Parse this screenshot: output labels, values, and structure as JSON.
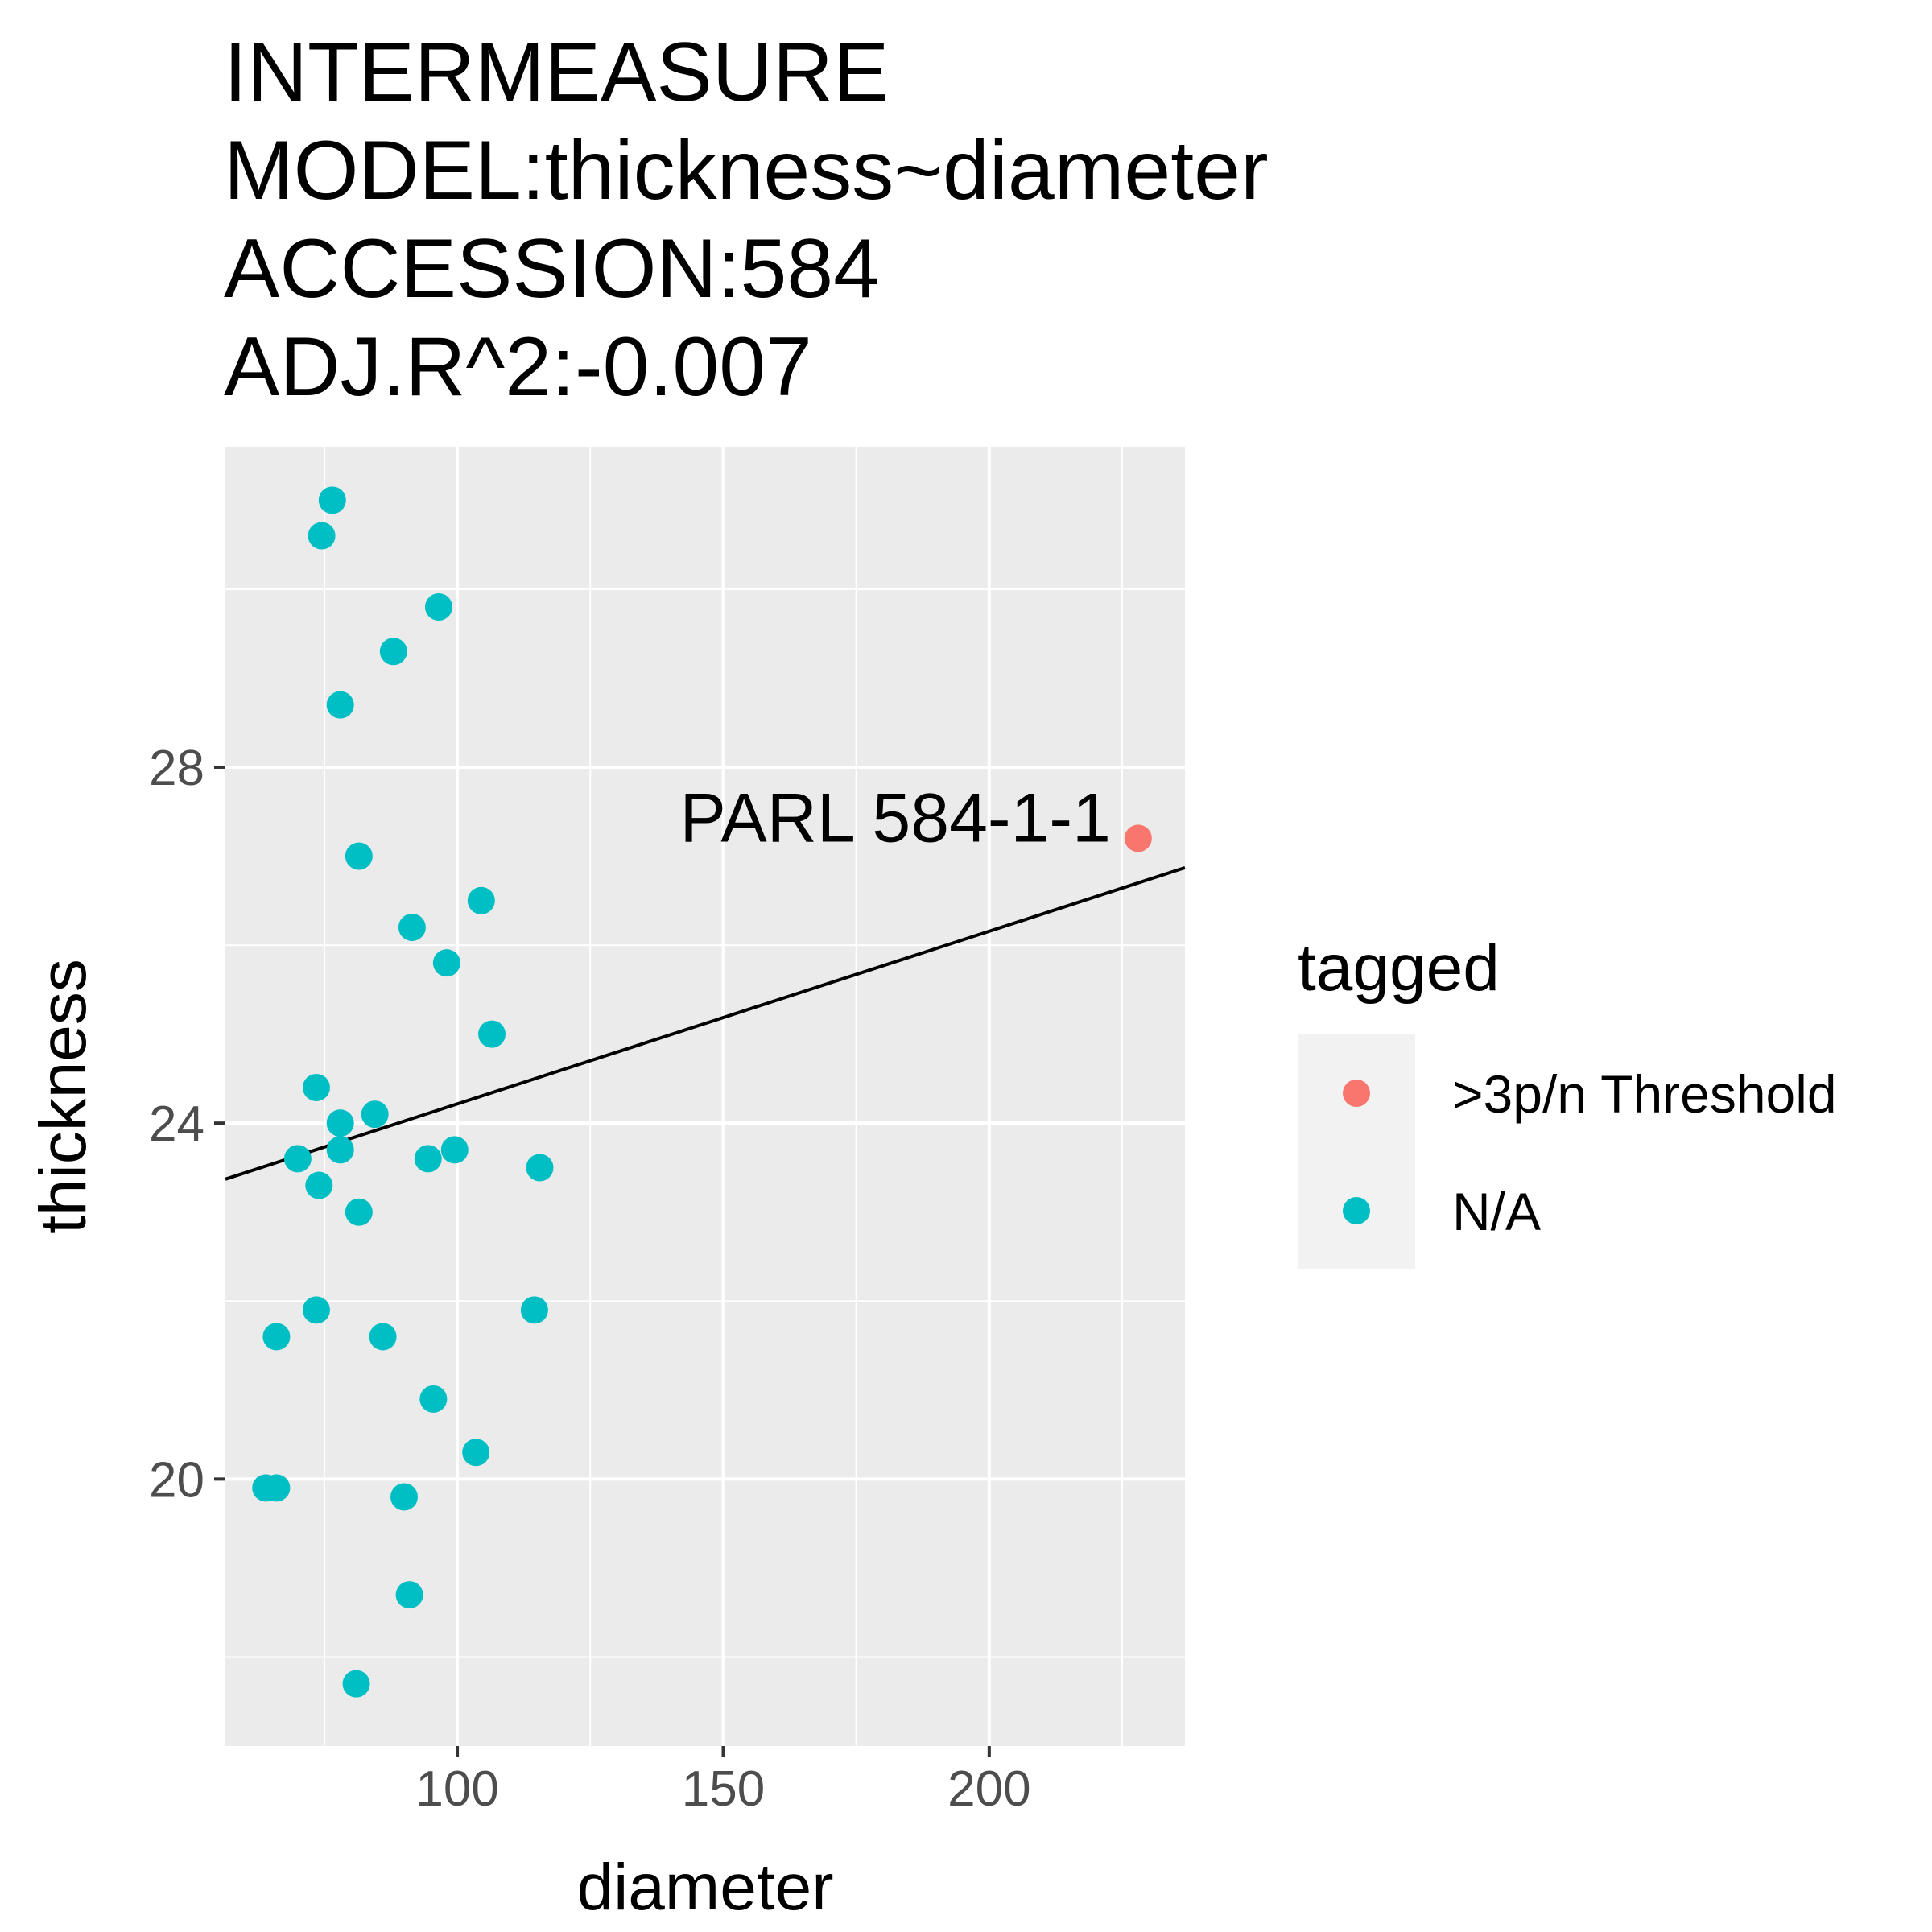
{
  "chart_data": {
    "type": "scatter",
    "title_lines": [
      "INTERMEASURE",
      "MODEL:thickness~diameter",
      "ACCESSION:584",
      "ADJ.R^2:-0.007"
    ],
    "xlabel": "diameter",
    "ylabel": "thickness",
    "xlim": [
      56.4,
      236.8
    ],
    "ylim": [
      17.0,
      31.6
    ],
    "x_ticks": [
      100,
      150,
      200
    ],
    "x_tick_labels": [
      "100",
      "150",
      "200"
    ],
    "y_ticks": [
      20,
      24,
      28
    ],
    "y_tick_labels": [
      "20",
      "24",
      "28"
    ],
    "grid": true,
    "legend": {
      "title": "tagged",
      "position": "right",
      "entries": [
        {
          "label": ">3p/n Threshold",
          "color": "#F8766D"
        },
        {
          "label": "N/A",
          "color": "#00BFC4"
        }
      ]
    },
    "series": [
      {
        "name": ">3p/n Threshold",
        "color": "#F8766D",
        "points": [
          {
            "x": 228.0,
            "y": 27.2,
            "label": "PARL 584-1-1"
          }
        ]
      },
      {
        "name": "N/A",
        "color": "#00BFC4",
        "points": [
          {
            "x": 76.5,
            "y": 31.0
          },
          {
            "x": 74.5,
            "y": 30.6
          },
          {
            "x": 96.5,
            "y": 29.8
          },
          {
            "x": 88.0,
            "y": 29.3
          },
          {
            "x": 78.0,
            "y": 28.7
          },
          {
            "x": 81.5,
            "y": 27.0
          },
          {
            "x": 104.5,
            "y": 26.5
          },
          {
            "x": 91.5,
            "y": 26.2
          },
          {
            "x": 98.0,
            "y": 25.8
          },
          {
            "x": 106.5,
            "y": 25.0
          },
          {
            "x": 73.5,
            "y": 24.4
          },
          {
            "x": 84.5,
            "y": 24.1
          },
          {
            "x": 78.0,
            "y": 24.0
          },
          {
            "x": 78.0,
            "y": 23.7
          },
          {
            "x": 70.0,
            "y": 23.6
          },
          {
            "x": 94.5,
            "y": 23.6
          },
          {
            "x": 99.5,
            "y": 23.7
          },
          {
            "x": 115.5,
            "y": 23.5
          },
          {
            "x": 74.0,
            "y": 23.3
          },
          {
            "x": 81.5,
            "y": 23.0
          },
          {
            "x": 73.5,
            "y": 21.9
          },
          {
            "x": 114.5,
            "y": 21.9
          },
          {
            "x": 66.0,
            "y": 21.6
          },
          {
            "x": 86.0,
            "y": 21.6
          },
          {
            "x": 95.5,
            "y": 20.9
          },
          {
            "x": 103.5,
            "y": 20.3
          },
          {
            "x": 64.0,
            "y": 19.9
          },
          {
            "x": 66.0,
            "y": 19.9
          },
          {
            "x": 90.0,
            "y": 19.8
          },
          {
            "x": 91.0,
            "y": 18.7
          },
          {
            "x": 81.0,
            "y": 17.7
          }
        ]
      }
    ],
    "fit_line": {
      "color": "#000000",
      "x": [
        56.4,
        236.8
      ],
      "y": [
        23.37,
        26.87
      ]
    }
  }
}
